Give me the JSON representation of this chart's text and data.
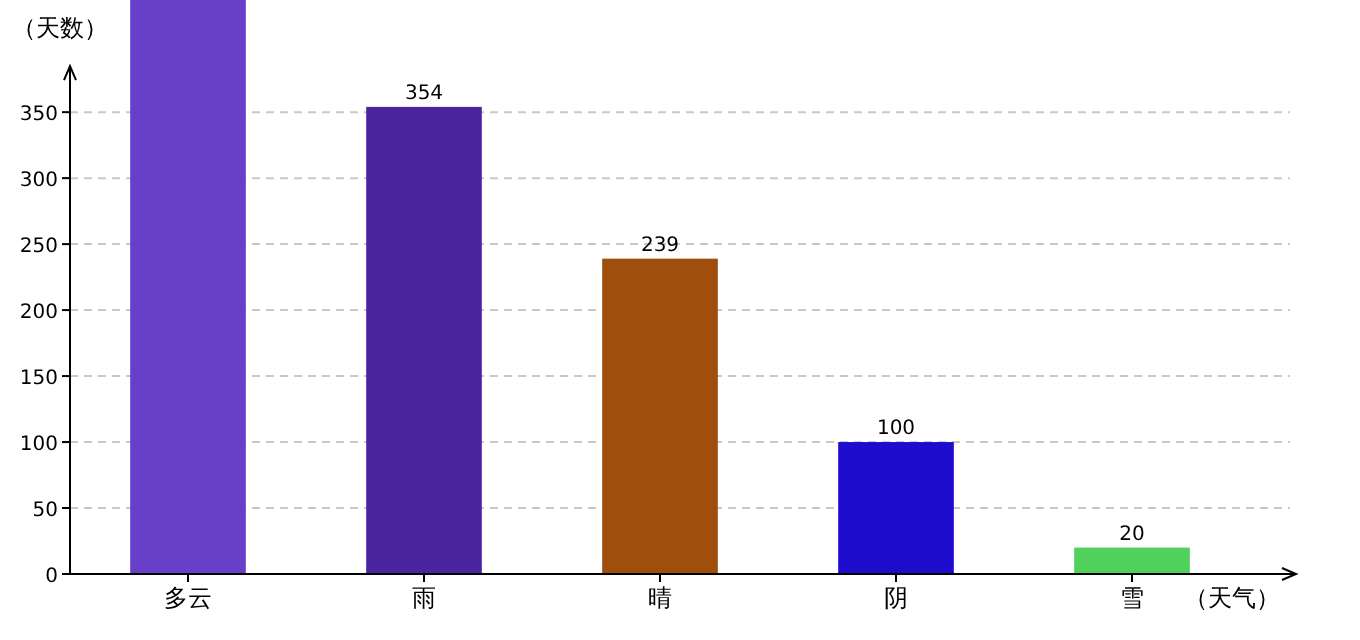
{
  "chart_data": {
    "type": "bar",
    "xlabel": "（天气）",
    "ylabel": "（天数）",
    "categories": [
      "多云",
      "雨",
      "晴",
      "阴",
      "雪"
    ],
    "values": [
      435,
      354,
      239,
      100,
      20
    ],
    "value_labels": [
      null,
      "354",
      "239",
      "100",
      "20"
    ],
    "colors": [
      "#673fc8",
      "#4b25a0",
      "#a04e0c",
      "#1e0ccc",
      "#4fd15b"
    ],
    "ylim": [
      0,
      435
    ],
    "yticks": [
      0,
      50,
      100,
      150,
      200,
      250,
      300,
      350
    ],
    "grid": "y"
  }
}
